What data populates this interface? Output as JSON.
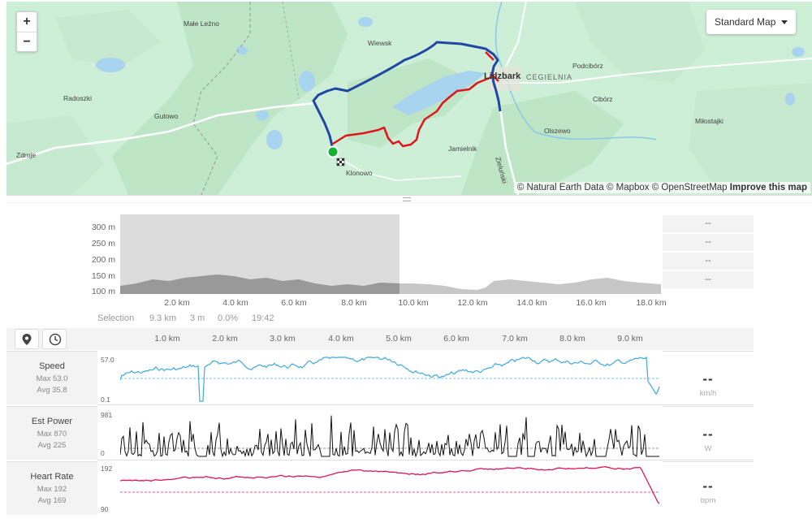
{
  "map": {
    "zoom_in": "+",
    "zoom_out": "−",
    "map_type": "Standard Map",
    "attribution": "© Natural Earth Data © Mapbox © OpenStreetMap",
    "attribution_link": "Improve this map",
    "places": [
      "Małe Leźno",
      "Wiewsk",
      "Radoszki",
      "Gutowo",
      "Zdroje",
      "Klonowo",
      "Lidzbark",
      "CEGIELNIA",
      "Podcibórz",
      "Cibórz",
      "Olszewo",
      "Miłostajki",
      "Jamielnik",
      "Zieluński"
    ],
    "colors": {
      "route_blue": "#2047a4",
      "route_red": "#e0161c",
      "start": "#13b233"
    }
  },
  "elevation": {
    "y_labels": [
      "300 m",
      "250 m",
      "200 m",
      "150 m",
      "100 m"
    ],
    "x_labels": [
      "2.0 km",
      "4.0 km",
      "6.0 km",
      "8.0 km",
      "10.0 km",
      "12.0 km",
      "14.0 km",
      "16.0 km",
      "18.0 km"
    ],
    "stats": [
      "--",
      "--",
      "--",
      "--"
    ],
    "selection": {
      "label": "Selection",
      "distance": "9.3 km",
      "elev": "3 m",
      "grade": "0.0%",
      "time": "19:42"
    }
  },
  "streams": {
    "x_labels": [
      "1.0 km",
      "2.0 km",
      "3.0 km",
      "4.0 km",
      "5.0 km",
      "6.0 km",
      "7.0 km",
      "8.0 km",
      "9.0 km"
    ],
    "speed": {
      "title": "Speed",
      "max": "Max 53.0",
      "avg": "Avg 35.8",
      "top": "57.0",
      "bottom": "0.1",
      "value": "--",
      "unit": "km/h",
      "color": "#3ea8e0"
    },
    "power": {
      "title": "Est Power",
      "max": "Max 870",
      "avg": "Avg 225",
      "top": "981",
      "bottom": "0",
      "value": "--",
      "unit": "W",
      "color": "#111111"
    },
    "hr": {
      "title": "Heart Rate",
      "max": "Max 192",
      "avg": "Avg 169",
      "top": "192",
      "bottom": "90",
      "value": "--",
      "unit": "bpm",
      "color": "#e0145a"
    }
  }
}
